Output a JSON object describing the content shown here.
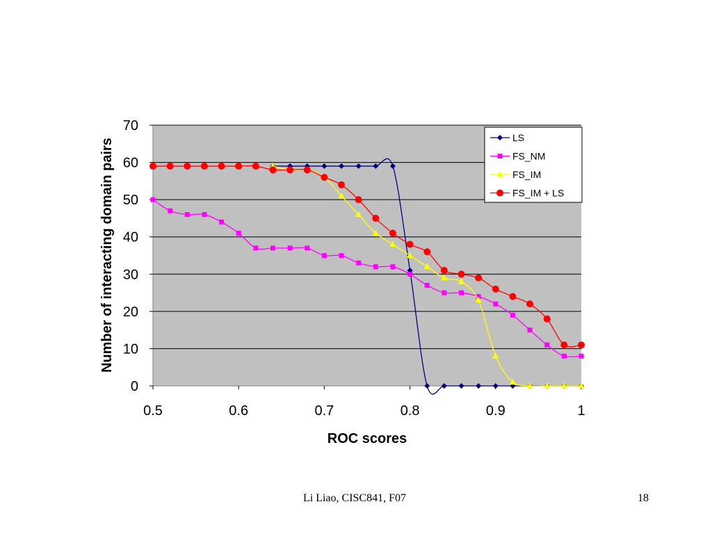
{
  "chart_data": {
    "type": "line",
    "title": "",
    "xlabel": "ROC scores",
    "ylabel": "Number of interacting domain pairs",
    "xlim": [
      0.5,
      1
    ],
    "ylim": [
      0,
      70
    ],
    "x_ticks": [
      "0.5",
      "0.6",
      "0.7",
      "0.8",
      "0.9",
      "1"
    ],
    "y_ticks": [
      "0",
      "10",
      "20",
      "30",
      "40",
      "50",
      "60",
      "70"
    ],
    "grid": "horizontal",
    "plot_background": "#c0c0c0",
    "legend_position": "top-right",
    "series": [
      {
        "name": "LS",
        "color": "#000080",
        "marker": "diamond",
        "x": [
          0.64,
          0.66,
          0.68,
          0.7,
          0.72,
          0.74,
          0.76,
          0.78,
          0.8,
          0.82,
          0.84,
          0.86,
          0.88,
          0.9,
          0.92,
          0.94,
          0.96,
          0.98,
          1.0
        ],
        "y": [
          59,
          59,
          59,
          59,
          59,
          59,
          59,
          59,
          31,
          0,
          0,
          0,
          0,
          0,
          0,
          0,
          0,
          0,
          0
        ]
      },
      {
        "name": "FS_NM",
        "color": "#ff00ff",
        "marker": "square",
        "x": [
          0.5,
          0.52,
          0.54,
          0.56,
          0.58,
          0.6,
          0.62,
          0.64,
          0.66,
          0.68,
          0.7,
          0.72,
          0.74,
          0.76,
          0.78,
          0.8,
          0.82,
          0.84,
          0.86,
          0.88,
          0.9,
          0.92,
          0.94,
          0.96,
          0.98,
          1.0
        ],
        "y": [
          50,
          47,
          46,
          46,
          44,
          41,
          37,
          37,
          37,
          37,
          35,
          35,
          33,
          32,
          32,
          30,
          27,
          25,
          25,
          24,
          22,
          19,
          15,
          11,
          8,
          8
        ]
      },
      {
        "name": "FS_IM",
        "color": "#ffff00",
        "marker": "triangle",
        "x": [
          0.64,
          0.66,
          0.68,
          0.7,
          0.72,
          0.74,
          0.76,
          0.78,
          0.8,
          0.82,
          0.84,
          0.86,
          0.88,
          0.9,
          0.92,
          0.94,
          0.96,
          0.98,
          1.0
        ],
        "y": [
          59,
          58,
          58,
          56,
          51,
          46,
          41,
          38,
          35,
          32,
          29,
          28,
          23,
          8,
          1,
          0,
          0,
          0,
          0
        ]
      },
      {
        "name": "FS_IM + LS",
        "color": "#ff0000",
        "marker": "circle",
        "x": [
          0.5,
          0.52,
          0.54,
          0.56,
          0.58,
          0.6,
          0.62,
          0.64,
          0.66,
          0.68,
          0.7,
          0.72,
          0.74,
          0.76,
          0.78,
          0.8,
          0.82,
          0.84,
          0.86,
          0.88,
          0.9,
          0.92,
          0.94,
          0.96,
          0.98,
          1.0
        ],
        "y": [
          59,
          59,
          59,
          59,
          59,
          59,
          59,
          58,
          58,
          58,
          56,
          54,
          50,
          45,
          41,
          38,
          36,
          31,
          30,
          29,
          26,
          24,
          22,
          18,
          11,
          11
        ]
      }
    ]
  },
  "footer": {
    "credit": "Li Liao, CISC841, F07",
    "page_number": "18"
  }
}
